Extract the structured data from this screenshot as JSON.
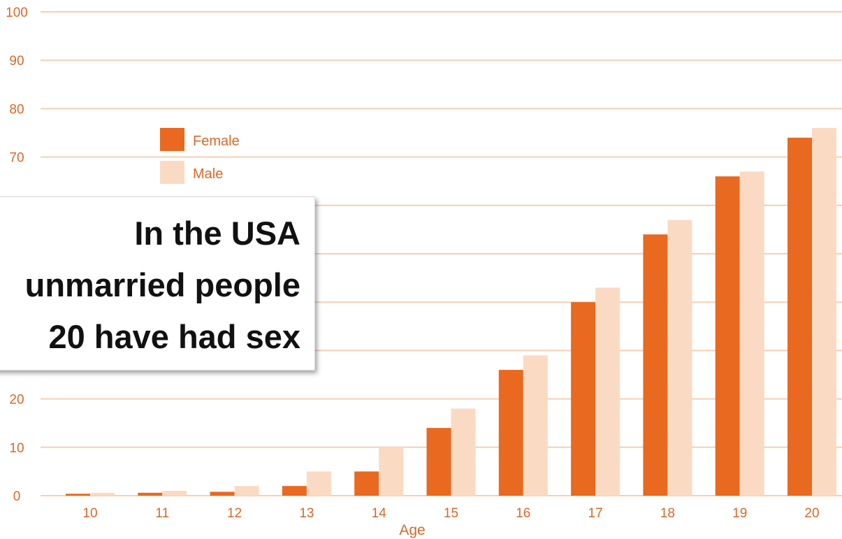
{
  "chart_data": {
    "type": "bar",
    "categories": [
      "10",
      "11",
      "12",
      "13",
      "14",
      "15",
      "16",
      "17",
      "18",
      "19",
      "20"
    ],
    "series": [
      {
        "name": "Female",
        "color": "#e8691f",
        "values": [
          0.4,
          0.6,
          0.8,
          2,
          5,
          14,
          26,
          40,
          54,
          66,
          74
        ]
      },
      {
        "name": "Male",
        "color": "#fbdac4",
        "values": [
          0.6,
          1,
          2,
          5,
          10,
          18,
          29,
          43,
          57,
          67,
          76
        ]
      }
    ],
    "xlabel": "Age",
    "ylabel": "",
    "ylim": [
      0,
      100
    ],
    "yticks": [
      "0",
      "10",
      "20",
      "30",
      "40",
      "50",
      "60",
      "70",
      "80",
      "90",
      "100"
    ],
    "grid": true,
    "grid_color": "#f7cfb3",
    "text_color": "#d9682a",
    "legend": {
      "placement": "top-left",
      "entries": [
        "Female",
        "Male"
      ]
    }
  },
  "overlay": {
    "lines": [
      "In the USA",
      "unmarried people",
      "20 have had sex"
    ]
  }
}
